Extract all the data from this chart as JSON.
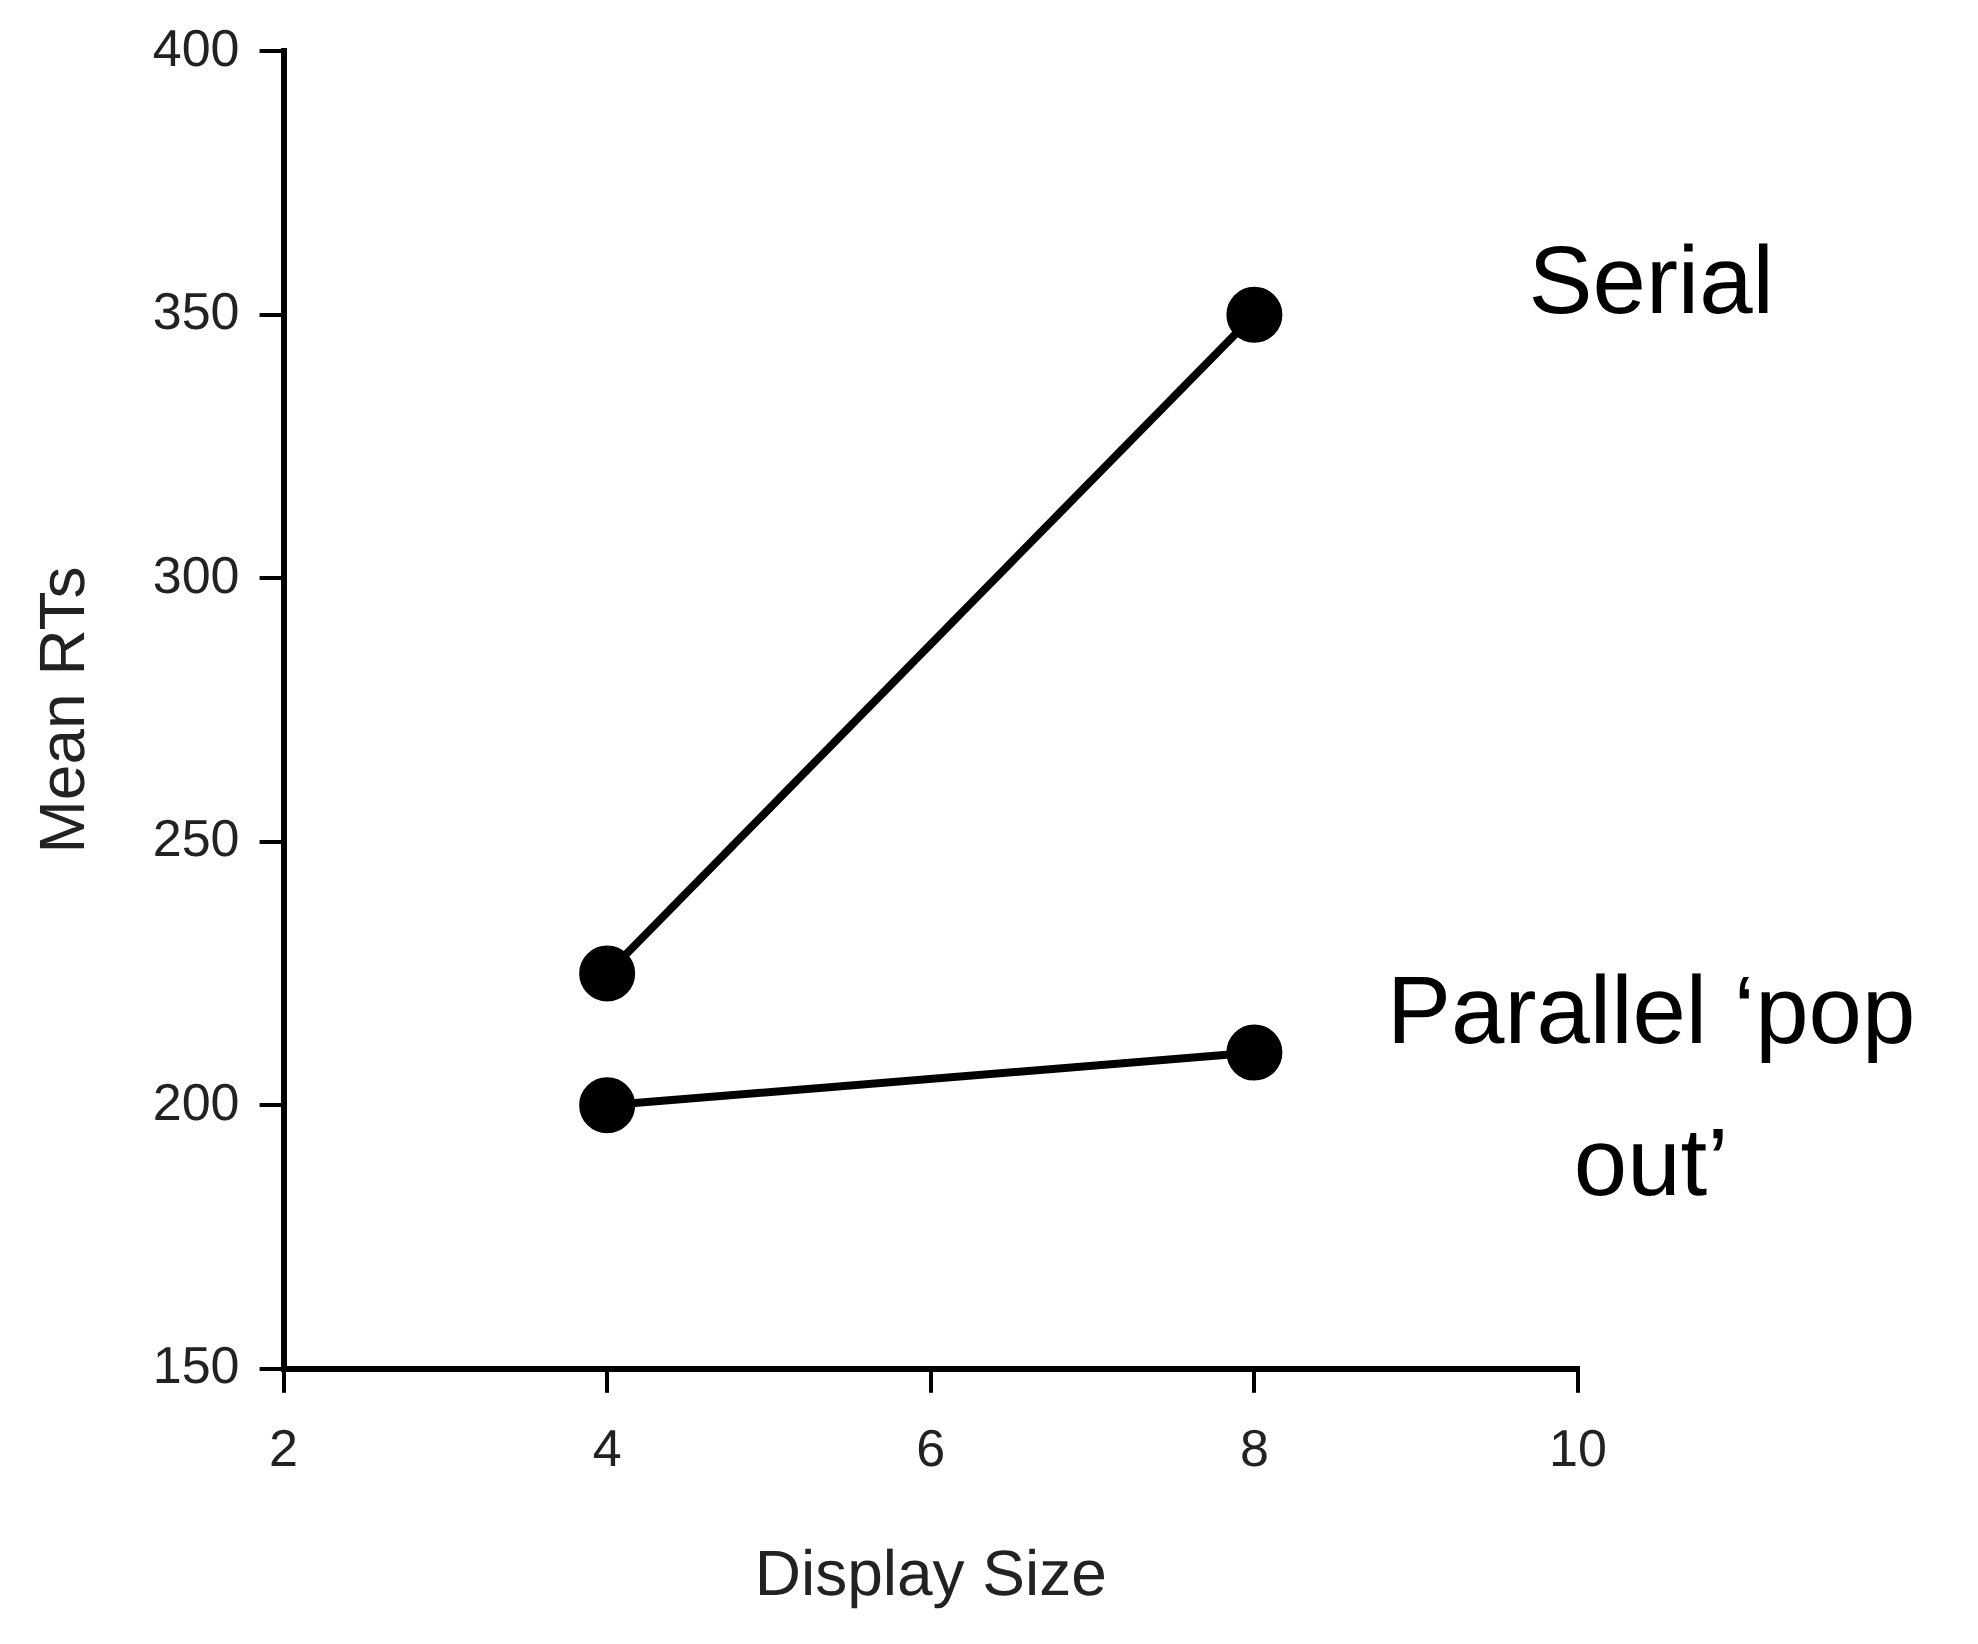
{
  "chart_data": {
    "type": "line",
    "xlabel": "Display Size",
    "ylabel": "Mean RTs",
    "x": [
      4,
      8
    ],
    "series": [
      {
        "name": "Serial",
        "color": "#000000",
        "values": [
          225,
          350
        ]
      },
      {
        "name": "Parallel ‘pop out’",
        "color": "#000000",
        "values": [
          200,
          210
        ]
      }
    ],
    "xlim": [
      2,
      10
    ],
    "xticks": [
      2,
      4,
      6,
      8,
      10
    ],
    "ylim": [
      150,
      400
    ],
    "yticks": [
      150,
      200,
      250,
      300,
      350,
      400
    ],
    "grid": false,
    "legend": false,
    "marker": "circle",
    "line_style": "solid"
  }
}
